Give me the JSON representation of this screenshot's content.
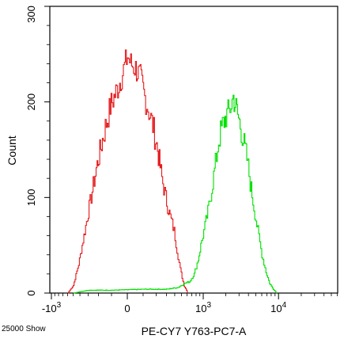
{
  "chart_data": {
    "type": "histogram",
    "xlabel": "PE-CY7 Y763-PC7-A",
    "ylabel": "Count",
    "footer_note": "25000 Show",
    "xscale": "biexponential",
    "x_ticks": [
      {
        "value": -1000,
        "label": "-10",
        "exp": "3"
      },
      {
        "value": 0,
        "label": "0",
        "exp": ""
      },
      {
        "value": 1000,
        "label": "10",
        "exp": "3"
      },
      {
        "value": 10000,
        "label": "10",
        "exp": "4"
      }
    ],
    "ylim": [
      0,
      300
    ],
    "y_ticks": [
      {
        "value": 0,
        "label": "0"
      },
      {
        "value": 100,
        "label": "100"
      },
      {
        "value": 200,
        "label": "200"
      },
      {
        "value": 300,
        "label": "300"
      }
    ],
    "grid": false,
    "series": [
      {
        "color": "#e31a1c",
        "points": [
          [
            -600,
            0
          ],
          [
            -500,
            8
          ],
          [
            -420,
            30
          ],
          [
            -350,
            60
          ],
          [
            -280,
            95
          ],
          [
            -220,
            130
          ],
          [
            -160,
            165
          ],
          [
            -110,
            195
          ],
          [
            -60,
            215
          ],
          [
            -30,
            230
          ],
          [
            0,
            248
          ],
          [
            20,
            240
          ],
          [
            50,
            235
          ],
          [
            80,
            225
          ],
          [
            110,
            205
          ],
          [
            140,
            190
          ],
          [
            170,
            175
          ],
          [
            210,
            150
          ],
          [
            250,
            120
          ],
          [
            300,
            95
          ],
          [
            340,
            80
          ],
          [
            390,
            65
          ],
          [
            430,
            45
          ],
          [
            480,
            25
          ],
          [
            540,
            8
          ],
          [
            620,
            0
          ]
        ]
      },
      {
        "color": "#00e000",
        "points": [
          [
            -500,
            0
          ],
          [
            -300,
            3
          ],
          [
            -100,
            3
          ],
          [
            100,
            4
          ],
          [
            300,
            4
          ],
          [
            450,
            6
          ],
          [
            550,
            10
          ],
          [
            650,
            12
          ],
          [
            750,
            20
          ],
          [
            850,
            35
          ],
          [
            950,
            55
          ],
          [
            1050,
            70
          ],
          [
            1150,
            85
          ],
          [
            1300,
            110
          ],
          [
            1450,
            135
          ],
          [
            1600,
            160
          ],
          [
            1800,
            175
          ],
          [
            2000,
            185
          ],
          [
            2200,
            190
          ],
          [
            2500,
            205
          ],
          [
            2800,
            190
          ],
          [
            3100,
            175
          ],
          [
            3400,
            160
          ],
          [
            3800,
            140
          ],
          [
            4200,
            115
          ],
          [
            4700,
            90
          ],
          [
            5300,
            65
          ],
          [
            6000,
            40
          ],
          [
            6800,
            22
          ],
          [
            7600,
            10
          ],
          [
            8500,
            4
          ],
          [
            9500,
            0
          ]
        ]
      }
    ]
  }
}
